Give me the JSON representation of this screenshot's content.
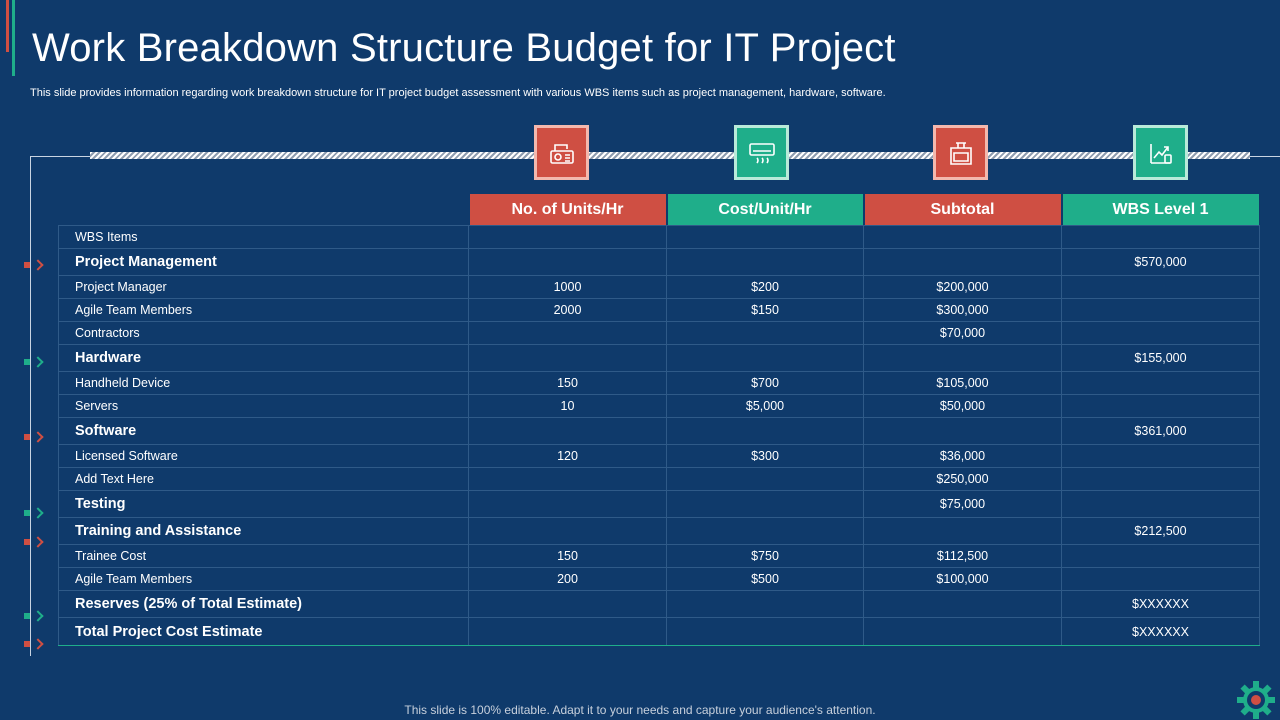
{
  "page": {
    "title": "Work Breakdown Structure Budget for IT Project",
    "subtitle": "This slide provides information regarding work breakdown structure for IT project budget assessment with various WBS items such as project management, hardware, software.",
    "footer": "This slide is 100% editable. Adapt it to your needs and capture your audience's attention."
  },
  "colors": {
    "background": "#0f3a6b",
    "red": "#cf4f43",
    "green": "#1fae8a"
  },
  "icons": [
    "cash-register-icon",
    "air-conditioner-icon",
    "kitchen-stove-icon",
    "growth-chart-hand-icon"
  ],
  "table": {
    "headers": [
      "No. of Units/Hr",
      "Cost/Unit/Hr",
      "Subtotal",
      "WBS Level 1"
    ],
    "rows": [
      {
        "item": "WBS Items",
        "units": "",
        "cost": "",
        "subtotal": "",
        "level1": ""
      },
      {
        "item": "Project Management",
        "units": "",
        "cost": "",
        "subtotal": "",
        "level1": "$570,000"
      },
      {
        "item": "Project Manager",
        "units": "1000",
        "cost": "$200",
        "subtotal": "$200,000",
        "level1": ""
      },
      {
        "item": "Agile Team Members",
        "units": "2000",
        "cost": "$150",
        "subtotal": "$300,000",
        "level1": ""
      },
      {
        "item": "Contractors",
        "units": "",
        "cost": "",
        "subtotal": "$70,000",
        "level1": ""
      },
      {
        "item": "Hardware",
        "units": "",
        "cost": "",
        "subtotal": "",
        "level1": "$155,000"
      },
      {
        "item": "Handheld Device",
        "units": "150",
        "cost": "$700",
        "subtotal": "$105,000",
        "level1": ""
      },
      {
        "item": "Servers",
        "units": "10",
        "cost": "$5,000",
        "subtotal": "$50,000",
        "level1": ""
      },
      {
        "item": "Software",
        "units": "",
        "cost": "",
        "subtotal": "",
        "level1": "$361,000"
      },
      {
        "item": "Licensed Software",
        "units": "120",
        "cost": "$300",
        "subtotal": "$36,000",
        "level1": ""
      },
      {
        "item": "Add Text Here",
        "units": "",
        "cost": "",
        "subtotal": "$250,000",
        "level1": ""
      },
      {
        "item": "Testing",
        "units": "",
        "cost": "",
        "subtotal": "$75,000",
        "level1": ""
      },
      {
        "item": "Training and Assistance",
        "units": "",
        "cost": "",
        "subtotal": "",
        "level1": "$212,500"
      },
      {
        "item": "Trainee  Cost",
        "units": "150",
        "cost": "$750",
        "subtotal": "$112,500",
        "level1": ""
      },
      {
        "item": "Agile Team Members",
        "units": "200",
        "cost": "$500",
        "subtotal": "$100,000",
        "level1": ""
      },
      {
        "item": "Reserves (25% of Total Estimate)",
        "units": "",
        "cost": "",
        "subtotal": "",
        "level1": "$XXXXXX"
      },
      {
        "item": "Total Project Cost Estimate",
        "units": "",
        "cost": "",
        "subtotal": "",
        "level1": "$XXXXXX"
      }
    ]
  }
}
